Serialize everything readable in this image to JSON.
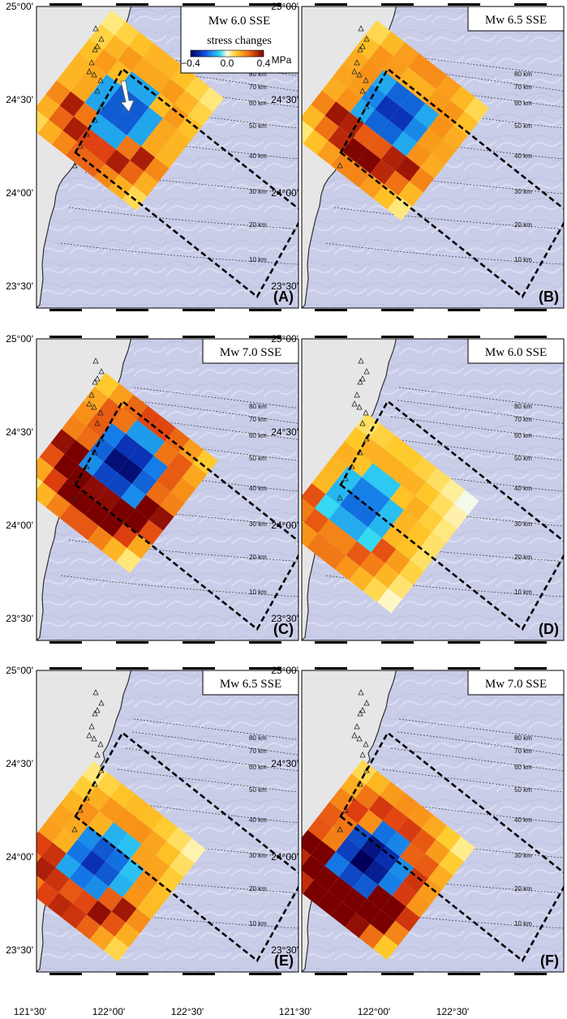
{
  "figure": {
    "y_ticks": [
      "25°00'",
      "24°30'",
      "24°00'",
      "23°30'"
    ],
    "x_ticks": [
      "121°30'",
      "122°00'",
      "122°30'"
    ],
    "depth_contours": [
      "80 km",
      "70 km",
      "60 km",
      "50 km",
      "40 km",
      "30 km",
      "20 km",
      "10 km"
    ],
    "colors": {
      "sea": "#c9cde8",
      "land": "#e6e6e6",
      "coastline": "#303030",
      "negative_max": "#00005a",
      "zero": "#fffbe6",
      "positive_max": "#7a0000"
    }
  },
  "colorbar": {
    "title": "stress changes",
    "tick_labels": [
      "−0.4",
      "0.0",
      "0.4"
    ],
    "unit": "MPa",
    "range": [
      -0.4,
      0.4
    ]
  },
  "panels": [
    {
      "label": "(A)",
      "title": "Mw 6.0 SSE",
      "has_colorbar": true,
      "has_arrow": true,
      "grid_n": 8,
      "patch_size": 6,
      "center_lon": 121.93,
      "center_lat": 24.38,
      "center_offset": [
        0,
        0
      ],
      "amplitude": 0.28
    },
    {
      "label": "(B)",
      "title": "Mw 6.5 SSE",
      "has_colorbar": false,
      "has_arrow": false,
      "grid_n": 8,
      "patch_size": 6,
      "center_lon": 121.93,
      "center_lat": 24.32,
      "center_offset": [
        0,
        -0.5
      ],
      "amplitude": 0.32
    },
    {
      "label": "(C)",
      "title": "Mw 7.0 SSE",
      "has_colorbar": false,
      "has_arrow": false,
      "grid_n": 8,
      "patch_size": 6,
      "center_lon": 121.9,
      "center_lat": 24.2,
      "center_offset": [
        0,
        -0.6
      ],
      "amplitude": 0.4
    },
    {
      "label": "(D)",
      "title": "Mw 6.0 SSE",
      "has_colorbar": false,
      "has_arrow": false,
      "grid_n": 8,
      "patch_size": 6,
      "center_lon": 121.88,
      "center_lat": 23.96,
      "center_offset": [
        -1,
        0.2
      ],
      "amplitude": 0.24
    },
    {
      "label": "(E)",
      "title": "Mw 6.5 SSE",
      "has_colorbar": false,
      "has_arrow": false,
      "grid_n": 8,
      "patch_size": 6,
      "center_lon": 121.84,
      "center_lat": 23.86,
      "center_offset": [
        -0.3,
        0.3
      ],
      "amplitude": 0.3
    },
    {
      "label": "(F)",
      "title": "Mw 7.0 SSE",
      "has_colorbar": false,
      "has_arrow": false,
      "grid_n": 8,
      "patch_size": 6,
      "center_lon": 121.86,
      "center_lat": 23.87,
      "center_offset": [
        -0.3,
        0.2
      ],
      "amplitude": 0.42
    }
  ]
}
